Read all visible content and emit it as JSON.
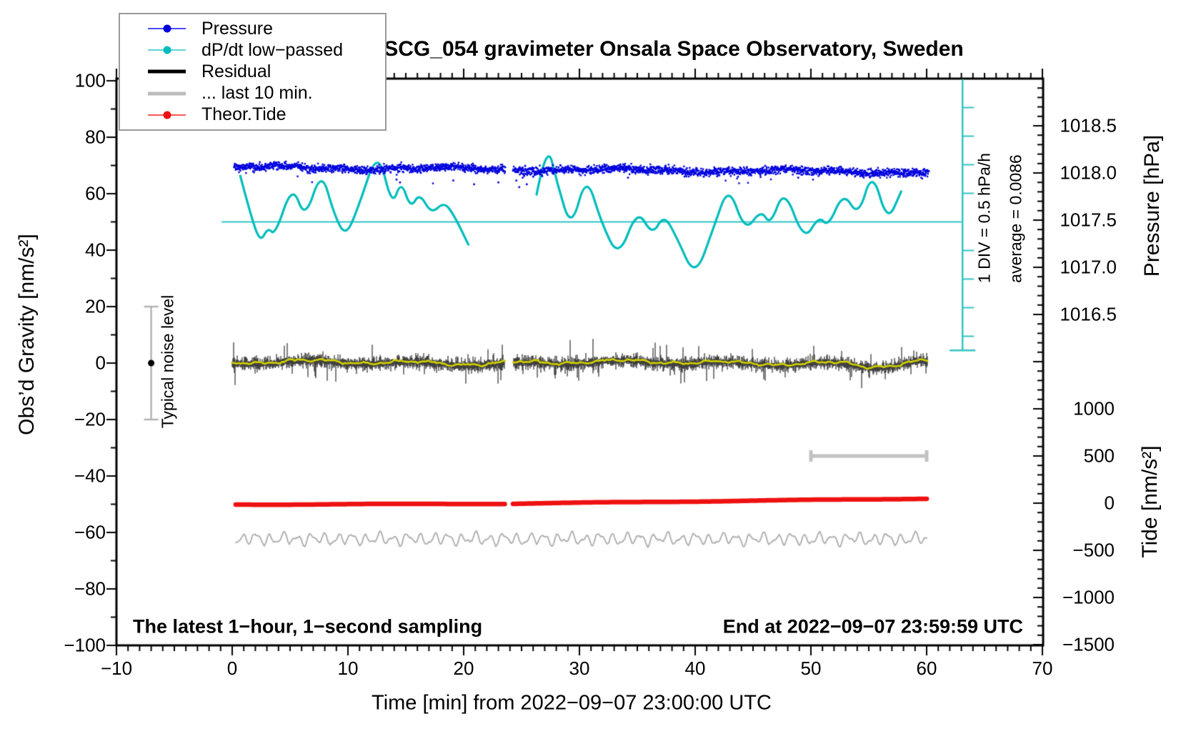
{
  "title": "SCG_054 gravimeter Onsala Space Observatory, Sweden",
  "footer": {
    "sampling_note": "The latest 1−hour, 1−second sampling",
    "end_note": "End at 2022−09−07 23:59:59 UTC"
  },
  "annotations": {
    "div_scale": "1 DIV = 0.5 hPa/h",
    "average": "average = 0.0086",
    "noise": "Typical noise level"
  },
  "legend": {
    "items": [
      {
        "label": "Pressure",
        "line_color": "#4a4aff",
        "line_h": 2,
        "dot": true,
        "dot_color": "#0000dd"
      },
      {
        "label": "dP/dt low−passed",
        "line_color": "#5fd6d6",
        "line_h": 2,
        "dot": true,
        "dot_color": "#00bcbc"
      },
      {
        "label": "Residual",
        "line_color": "#000000",
        "line_h": 5,
        "dot": false,
        "dot_color": ""
      },
      {
        "label": "... last 10 min.",
        "line_color": "#bcbcbc",
        "line_h": 5,
        "dot": false,
        "dot_color": ""
      },
      {
        "label": "Theor.Tide",
        "line_color": "#ff5a5a",
        "line_h": 2,
        "dot": true,
        "dot_color": "#ee1111"
      }
    ]
  },
  "colors": {
    "pressure_dots": "#0000dd",
    "dpdt_line": "#00bcbc",
    "dpdt_guides": "#35c3c3",
    "residual": "#000000",
    "residual_smooth": "#d0d000",
    "theor_tide": "#ee1111",
    "last10": "#b2b2b2",
    "scale_bars": "#c2c2c2",
    "noise_bar": "#b4b4b4",
    "axis": "#000000"
  },
  "chart_data": {
    "type": "line",
    "grid": false,
    "legend_position": "top-left",
    "axes": {
      "x": {
        "label": "Time [min] from 2022−09−07 23:00:00 UTC",
        "min": -10,
        "max": 70,
        "major": 10,
        "minor": 1,
        "tick_values": [
          -10,
          0,
          10,
          20,
          30,
          40,
          50,
          60,
          70
        ],
        "tick_labels": [
          "−10",
          "0",
          "10",
          "20",
          "30",
          "40",
          "50",
          "60",
          "70"
        ]
      },
      "gravity": {
        "label": "Obs’d Gravity [nm/s²]",
        "min": -100,
        "max": 100,
        "major": 20,
        "minor": 10,
        "tick_values": [
          100,
          80,
          60,
          40,
          20,
          0,
          -20,
          -40,
          -60,
          -80,
          -100
        ],
        "tick_labels": [
          "100",
          "80",
          "60",
          "40",
          "20",
          "0",
          "−20",
          "−40",
          "−60",
          "−80",
          "−100"
        ]
      },
      "pressure": {
        "label": "Pressure [hPa]",
        "top_value": 1019.0,
        "bottom_value": 1016.0,
        "major": 0.5,
        "minor": 0.1,
        "tick_values": [
          1018.5,
          1018.0,
          1017.5,
          1017.0,
          1016.5
        ],
        "tick_labels": [
          "1018.5",
          "1018.0",
          "1017.5",
          "1017.0",
          "1016.5"
        ]
      },
      "tide": {
        "label": "Tide [nm/s²]",
        "top_value": 1500,
        "bottom_value": -1500,
        "major": 500,
        "minor": 100,
        "tick_values": [
          1000,
          500,
          0,
          -500,
          -1000,
          -1500
        ],
        "tick_labels": [
          "1000",
          "500",
          "0",
          "−500",
          "−1000",
          "−1500"
        ]
      }
    },
    "data_gap_minutes": [
      23.58,
      24.26
    ],
    "series": [
      {
        "name": "Pressure",
        "type": "scatter",
        "axis": "pressure",
        "color": "#0000dd",
        "t_range": [
          0.15,
          60.2
        ],
        "start_hpa": 1018.06,
        "end_hpa": 1018.01,
        "noise_sd_hpa": 0.021,
        "low_outliers_hpa": [
          [
            14.2,
            1017.93
          ],
          [
            14.5,
            1017.9
          ],
          [
            19.1,
            1017.92
          ],
          [
            20.9,
            1017.88
          ],
          [
            23.0,
            1017.9
          ],
          [
            24.55,
            1017.92
          ],
          [
            24.8,
            1017.85
          ],
          [
            25.1,
            1017.95
          ],
          [
            25.45,
            1017.88
          ],
          [
            26.0,
            1017.96
          ],
          [
            34.2,
            1017.95
          ],
          [
            43.7,
            1017.96
          ],
          [
            48.9,
            1017.95
          ],
          [
            55.3,
            1017.97
          ],
          [
            58.0,
            1017.96
          ]
        ]
      },
      {
        "name": "dP/dt low-passed",
        "type": "line",
        "axis": "gravity-display",
        "color": "#00bcbc",
        "scale_note": "plotted on gravity axis; 1 DIV = 0.5 hPa/h; average = 0.0086 hPa/h at level 50",
        "average_level_gravity": 50,
        "segments": [
          [
            [
              0.7,
              66.3
            ],
            [
              1.5,
              53.9
            ],
            [
              2.4,
              42.5
            ],
            [
              3.1,
              48.1
            ],
            [
              3.7,
              45.1
            ],
            [
              5.2,
              63.5
            ],
            [
              6.3,
              50.6
            ],
            [
              7.7,
              68.6
            ],
            [
              8.8,
              52.7
            ],
            [
              9.8,
              44.6
            ],
            [
              10.9,
              55.2
            ],
            [
              12.6,
              76.2
            ],
            [
              13.8,
              55.2
            ],
            [
              14.6,
              64.8
            ],
            [
              15.4,
              54.7
            ],
            [
              16.2,
              60.3
            ],
            [
              17.2,
              52.7
            ],
            [
              18.3,
              57.2
            ],
            [
              19.2,
              52.2
            ],
            [
              20.4,
              42.0
            ]
          ],
          [
            [
              26.3,
              59.7
            ],
            [
              27.2,
              78.7
            ],
            [
              28.1,
              63.3
            ],
            [
              29.3,
              47.1
            ],
            [
              30.6,
              67.1
            ],
            [
              31.9,
              49.6
            ],
            [
              33.4,
              37.0
            ],
            [
              35.0,
              54.7
            ],
            [
              36.3,
              45.1
            ],
            [
              37.3,
              52.7
            ],
            [
              38.4,
              44.6
            ],
            [
              40.0,
              29.9
            ],
            [
              41.6,
              48.1
            ],
            [
              42.9,
              63.3
            ],
            [
              44.3,
              46.3
            ],
            [
              45.7,
              54.4
            ],
            [
              46.5,
              48.6
            ],
            [
              47.7,
              62.3
            ],
            [
              49.4,
              43.0
            ],
            [
              50.7,
              52.2
            ],
            [
              51.5,
              48.1
            ],
            [
              52.8,
              60.8
            ],
            [
              54.1,
              51.6
            ],
            [
              55.3,
              68.6
            ],
            [
              56.6,
              49.6
            ],
            [
              57.8,
              60.8
            ]
          ]
        ],
        "div_scale_bar": {
          "t": 63.1,
          "gravity_span": [
            4.5,
            100.6
          ],
          "gravity_per_div": 10.1
        }
      },
      {
        "name": "Residual",
        "type": "noisy-line",
        "axis": "gravity",
        "color": "#000000",
        "t_range": [
          0,
          60.1
        ],
        "mean": 0,
        "typical_spread": 2.5,
        "dip": {
          "center_min": 55.5,
          "depth": -1.5
        }
      },
      {
        "name": "Residual smoothed",
        "type": "line",
        "axis": "gravity",
        "color": "#d0d000",
        "t_range": [
          0,
          60.1
        ],
        "mean": 0.3
      },
      {
        "name": "... last 10 min.",
        "type": "line",
        "axis": "tide",
        "color": "#b2b2b2",
        "t_range": [
          0.3,
          60.1
        ],
        "mean": -380,
        "amplitude": 55,
        "extent_bar": {
          "t_range": [
            50,
            60
          ],
          "tide_level": 500
        }
      },
      {
        "name": "Theor.Tide",
        "type": "line",
        "axis": "tide",
        "color": "#ee1111",
        "points": [
          [
            0.3,
            -15
          ],
          [
            23.58,
            -6
          ],
          [
            24.26,
            -5
          ],
          [
            60.2,
            49
          ]
        ]
      }
    ],
    "noise_error_bar": {
      "t": -7,
      "gravity_span": [
        -20,
        20
      ],
      "center": 0
    }
  }
}
